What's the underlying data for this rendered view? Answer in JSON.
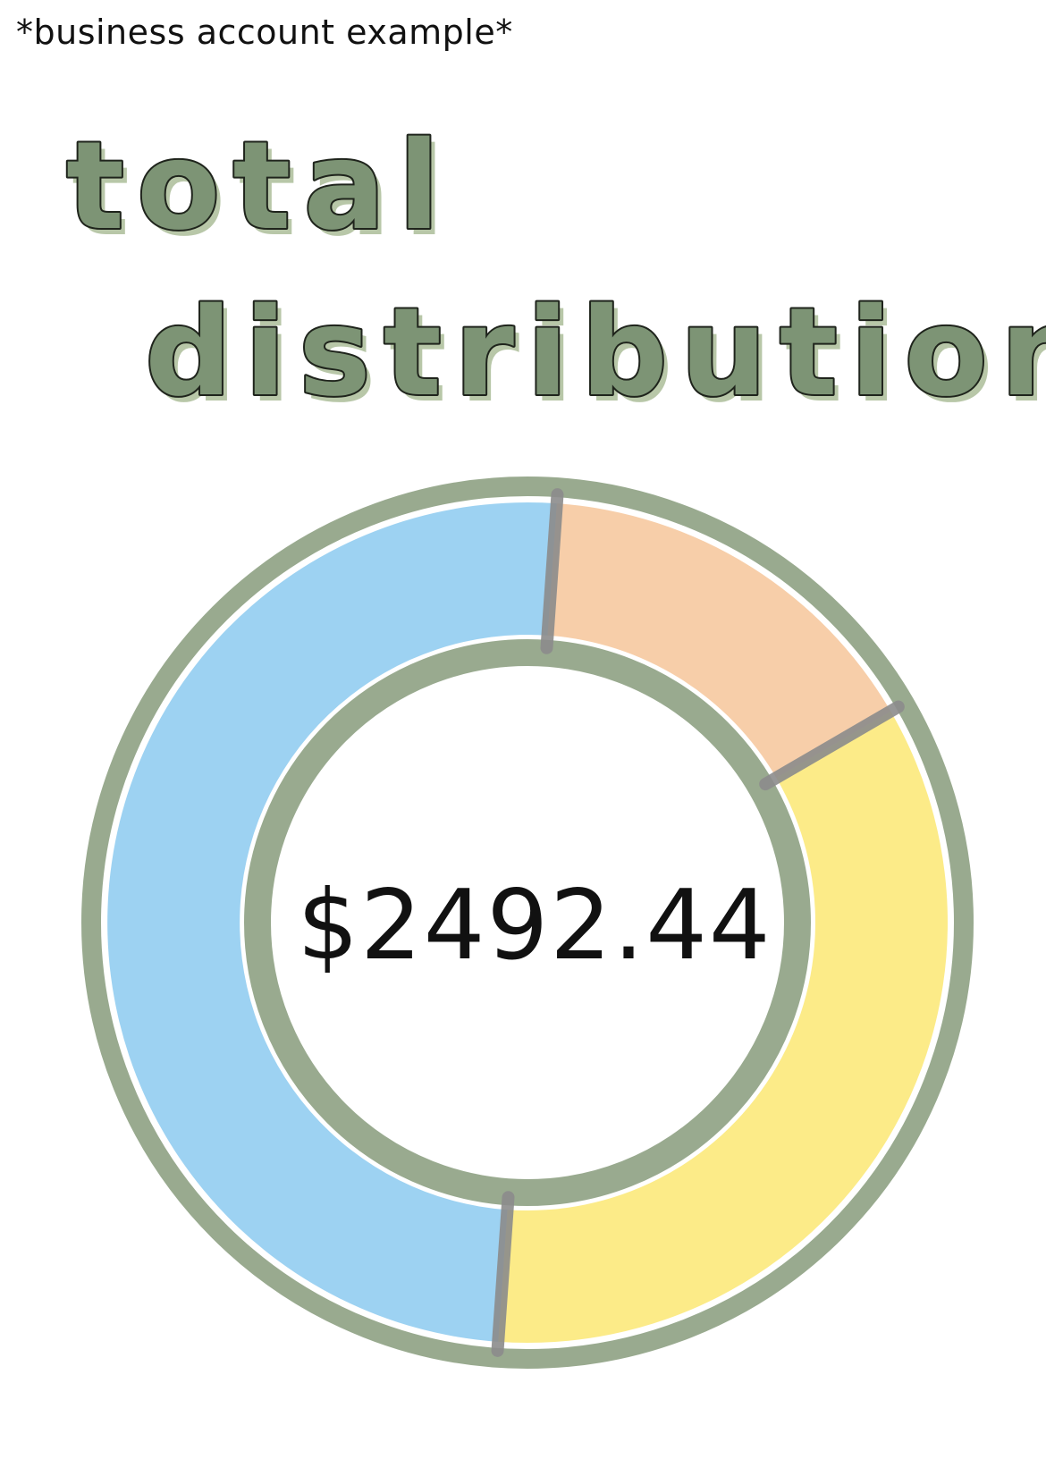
{
  "note": "*business account example*",
  "title": {
    "line1": "total",
    "line2": "distribution"
  },
  "chart_data": {
    "type": "pie",
    "style": "donut",
    "center_label": "$2492.44",
    "slices": [
      {
        "color": "#f6c59a",
        "fraction": 0.155
      },
      {
        "color": "#fbe873",
        "fraction": 0.345
      },
      {
        "color": "#8ccaf0",
        "fraction": 0.5
      }
    ],
    "colors": {
      "ring": "#93a589",
      "divider": "#8c8c8c",
      "title_fill": "#7d9475",
      "title_stroke": "#1f241c",
      "title_shadow": "#b8c7a8"
    }
  }
}
